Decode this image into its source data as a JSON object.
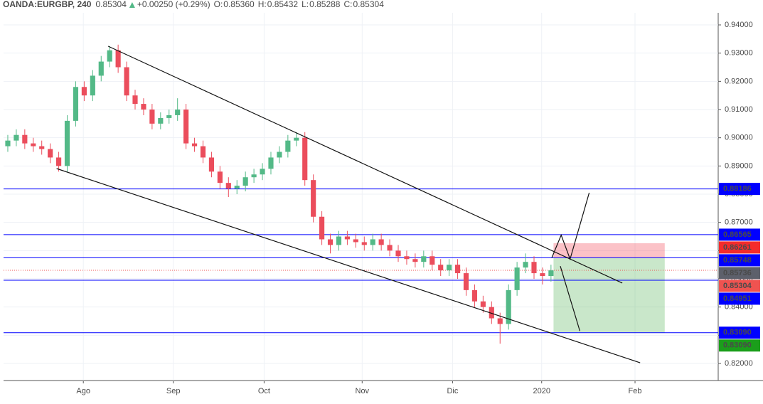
{
  "header": {
    "symbol": "OANDA:EURGBP, 240",
    "price": "0.85304",
    "change": "+0.00250 (+0.29%)",
    "ohlc": [
      {
        "label": "O:",
        "value": "0.85360"
      },
      {
        "label": "H:",
        "value": "0.85432"
      },
      {
        "label": "L:",
        "value": "0.85288"
      },
      {
        "label": "C:",
        "value": "0.85304"
      }
    ]
  },
  "chart_data": {
    "type": "candlestick",
    "categories": [
      null,
      null,
      null,
      null,
      null,
      null,
      null,
      null,
      null,
      null,
      null,
      null,
      null,
      null,
      null,
      null,
      null,
      null,
      null,
      null,
      null,
      null,
      null,
      null,
      null,
      null,
      null,
      null,
      null,
      null,
      null,
      null,
      null,
      null,
      null,
      null,
      null,
      null,
      null,
      null,
      null,
      null,
      null,
      null,
      null,
      null,
      null,
      null,
      null,
      null,
      null,
      null,
      null,
      null,
      null,
      null,
      null,
      null,
      null,
      null,
      null,
      null,
      null,
      null,
      null
    ],
    "open": [
      0.897,
      0.899,
      0.901,
      0.898,
      0.897,
      0.896,
      0.893,
      0.89,
      0.906,
      0.918,
      0.915,
      0.922,
      0.927,
      0.931,
      0.925,
      0.915,
      0.912,
      0.91,
      0.905,
      0.907,
      0.908,
      0.91,
      0.898,
      0.897,
      0.893,
      0.888,
      0.884,
      0.882,
      0.883,
      0.886,
      0.887,
      0.889,
      0.893,
      0.895,
      0.899,
      0.9,
      0.885,
      0.872,
      0.864,
      0.862,
      0.865,
      0.864,
      0.863,
      0.862,
      0.864,
      0.862,
      0.86,
      0.858,
      0.857,
      0.856,
      0.858,
      0.855,
      0.853,
      0.855,
      0.852,
      0.846,
      0.842,
      0.84,
      0.836,
      0.834,
      0.846,
      0.854,
      0.856,
      0.852,
      0.851
    ],
    "high": [
      0.901,
      0.903,
      0.903,
      0.9,
      0.899,
      0.898,
      0.895,
      0.908,
      0.92,
      0.92,
      0.924,
      0.929,
      0.9325,
      0.933,
      0.927,
      0.917,
      0.914,
      0.912,
      0.909,
      0.91,
      0.914,
      0.912,
      0.9,
      0.899,
      0.895,
      0.89,
      0.886,
      0.885,
      0.888,
      0.889,
      0.891,
      0.895,
      0.897,
      0.901,
      0.902,
      0.902,
      0.887,
      0.874,
      0.866,
      0.867,
      0.867,
      0.866,
      0.865,
      0.866,
      0.866,
      0.864,
      0.862,
      0.86,
      0.859,
      0.86,
      0.86,
      0.857,
      0.857,
      0.857,
      0.854,
      0.848,
      0.844,
      0.842,
      0.838,
      0.848,
      0.856,
      0.859,
      0.858,
      0.854,
      0.855
    ],
    "low": [
      0.895,
      0.897,
      0.896,
      0.895,
      0.894,
      0.891,
      0.888,
      0.888,
      0.904,
      0.913,
      0.913,
      0.92,
      0.925,
      0.923,
      0.913,
      0.91,
      0.908,
      0.903,
      0.903,
      0.905,
      0.906,
      0.896,
      0.895,
      0.891,
      0.886,
      0.882,
      0.879,
      0.88,
      0.881,
      0.884,
      0.885,
      0.887,
      0.891,
      0.893,
      0.897,
      0.883,
      0.87,
      0.862,
      0.859,
      0.86,
      0.862,
      0.861,
      0.86,
      0.86,
      0.86,
      0.858,
      0.856,
      0.855,
      0.854,
      0.854,
      0.853,
      0.851,
      0.851,
      0.85,
      0.844,
      0.84,
      0.838,
      0.834,
      0.827,
      0.832,
      0.844,
      0.852,
      0.85,
      0.848,
      0.849
    ],
    "close": [
      0.899,
      0.901,
      0.898,
      0.897,
      0.896,
      0.893,
      0.89,
      0.906,
      0.918,
      0.915,
      0.922,
      0.927,
      0.931,
      0.925,
      0.915,
      0.912,
      0.91,
      0.905,
      0.907,
      0.908,
      0.91,
      0.898,
      0.897,
      0.893,
      0.888,
      0.884,
      0.882,
      0.883,
      0.886,
      0.887,
      0.889,
      0.893,
      0.895,
      0.899,
      0.9,
      0.885,
      0.872,
      0.864,
      0.862,
      0.865,
      0.864,
      0.863,
      0.862,
      0.864,
      0.862,
      0.86,
      0.858,
      0.857,
      0.856,
      0.858,
      0.855,
      0.853,
      0.855,
      0.852,
      0.846,
      0.842,
      0.84,
      0.836,
      0.834,
      0.846,
      0.854,
      0.856,
      0.852,
      0.851,
      0.853
    ],
    "up_color": "#53b987",
    "down_color": "#eb4d5c",
    "xlim": [
      0,
      84.2
    ],
    "xticks": [
      {
        "value": 9.4,
        "label": "Ago"
      },
      {
        "value": 20,
        "label": "Sep"
      },
      {
        "value": 30.7,
        "label": "Oct"
      },
      {
        "value": 42.25,
        "label": "Nov"
      },
      {
        "value": 52.9,
        "label": "Dic"
      },
      {
        "value": 63.4,
        "label": "2020"
      },
      {
        "value": 74.4,
        "label": "Feb"
      }
    ],
    "ylim": [
      0.81395,
      0.94429
    ],
    "yticks": [
      {
        "value": 0.82,
        "label": "0.82000"
      },
      {
        "value": 0.83,
        "label": "0.83000"
      },
      {
        "value": 0.84,
        "label": "0.84000"
      },
      {
        "value": 0.85,
        "label": "0.85000"
      },
      {
        "value": 0.86,
        "label": "0.86000"
      },
      {
        "value": 0.87,
        "label": "0.87000"
      },
      {
        "value": 0.88,
        "label": "0.88000"
      },
      {
        "value": 0.89,
        "label": "0.89000"
      },
      {
        "value": 0.9,
        "label": "0.90000"
      },
      {
        "value": 0.91,
        "label": "0.91000"
      },
      {
        "value": 0.92,
        "label": "0.92000"
      },
      {
        "value": 0.93,
        "label": "0.93000"
      },
      {
        "value": 0.94,
        "label": "0.94000"
      }
    ],
    "grid": true,
    "levels": [
      {
        "value": 0.88186,
        "color": "#0000ff"
      },
      {
        "value": 0.86565,
        "color": "#0000ff"
      },
      {
        "value": 0.85748,
        "color": "#0000ff"
      },
      {
        "value": 0.84951,
        "color": "#0000ff"
      },
      {
        "value": {
          "value": 0.8309,
          "label": "0.83090"
        },
        "color": "#0000ff"
      }
    ],
    "price_tags": [
      {
        "value": 0.86261,
        "color": "#f42b2b"
      },
      {
        "value": 0.85736,
        "color": "#5d606b"
      },
      {
        "value": 0.85304,
        "color": "#ef5350",
        "line": true
      },
      {
        "value": {
          "value": 0.8309,
          "label": "0.83090"
        },
        "color": "#1b9e1b"
      }
    ],
    "position": {
      "start": 64.8,
      "end": 77.9,
      "stop": 0.86261,
      "entry": 0.85748,
      "target": 0.8309
    },
    "trendlines": [
      {
        "x": [
          12.33,
          72.9
        ],
        "y": [
          0.93244,
          0.8485
        ]
      },
      {
        "x": [
          6.25,
          75.0
        ],
        "y": [
          0.88908,
          0.82025
        ]
      },
      {
        "x": [
          64.6,
          65.7,
          66.75,
          69.0
        ],
        "y": [
          0.8575,
          0.8655,
          0.857,
          0.8805
        ]
      },
      {
        "x": [
          65.6,
          67.9
        ],
        "y": [
          0.8545,
          0.8315
        ]
      }
    ]
  }
}
